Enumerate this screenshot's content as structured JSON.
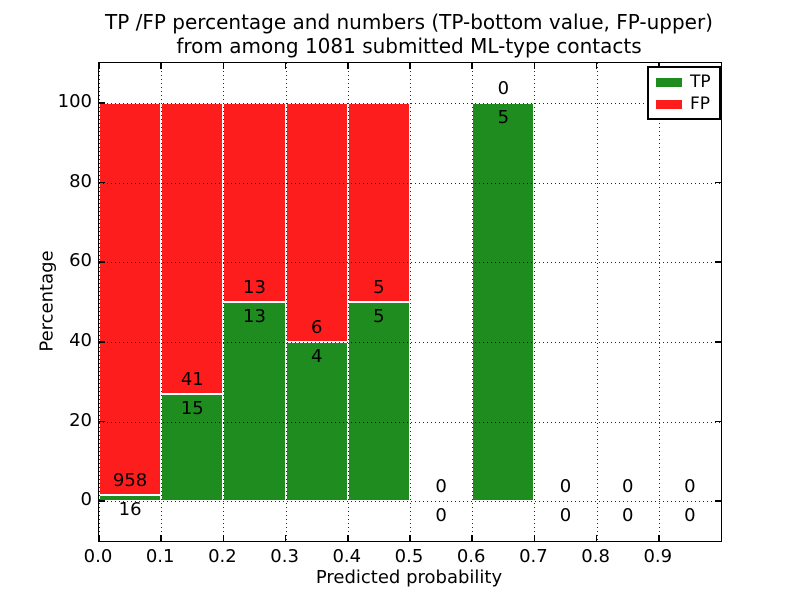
{
  "chart_data": {
    "type": "bar",
    "stacked": true,
    "title_lines": [
      "TP /FP percentage and numbers (TP-bottom value, FP-upper)",
      "from among 1081 submitted ML-type contacts"
    ],
    "xlabel": "Predicted probability",
    "ylabel": "Percentage",
    "xlim": [
      0.0,
      1.0
    ],
    "ylim": [
      -10,
      110
    ],
    "x_tick_values": [
      0.0,
      0.1,
      0.2,
      0.3,
      0.4,
      0.5,
      0.6,
      0.7,
      0.8,
      0.9
    ],
    "x_tick_labels": [
      "0.0",
      "0.1",
      "0.2",
      "0.3",
      "0.4",
      "0.5",
      "0.6",
      "0.7",
      "0.8",
      "0.9"
    ],
    "y_tick_values": [
      0,
      20,
      40,
      60,
      80,
      100
    ],
    "y_tick_labels": [
      "0",
      "20",
      "40",
      "60",
      "80",
      "100"
    ],
    "grid": true,
    "legend": {
      "position": "upper right",
      "entries": [
        {
          "label": "TP",
          "color": "#1e8c1e"
        },
        {
          "label": "FP",
          "color": "#fd1d1d"
        }
      ]
    },
    "total_contacts": 1081,
    "bin_width": 0.1,
    "bins": [
      {
        "x0": 0.0,
        "x1": 0.1,
        "tp": 16,
        "fp": 958
      },
      {
        "x0": 0.1,
        "x1": 0.2,
        "tp": 15,
        "fp": 41
      },
      {
        "x0": 0.2,
        "x1": 0.3,
        "tp": 13,
        "fp": 13
      },
      {
        "x0": 0.3,
        "x1": 0.4,
        "tp": 4,
        "fp": 6
      },
      {
        "x0": 0.4,
        "x1": 0.5,
        "tp": 5,
        "fp": 5
      },
      {
        "x0": 0.5,
        "x1": 0.6,
        "tp": 0,
        "fp": 0
      },
      {
        "x0": 0.6,
        "x1": 0.7,
        "tp": 5,
        "fp": 0
      },
      {
        "x0": 0.7,
        "x1": 0.8,
        "tp": 0,
        "fp": 0
      },
      {
        "x0": 0.8,
        "x1": 0.9,
        "tp": 0,
        "fp": 0
      },
      {
        "x0": 0.9,
        "x1": 1.0,
        "tp": 0,
        "fp": 0
      }
    ]
  }
}
